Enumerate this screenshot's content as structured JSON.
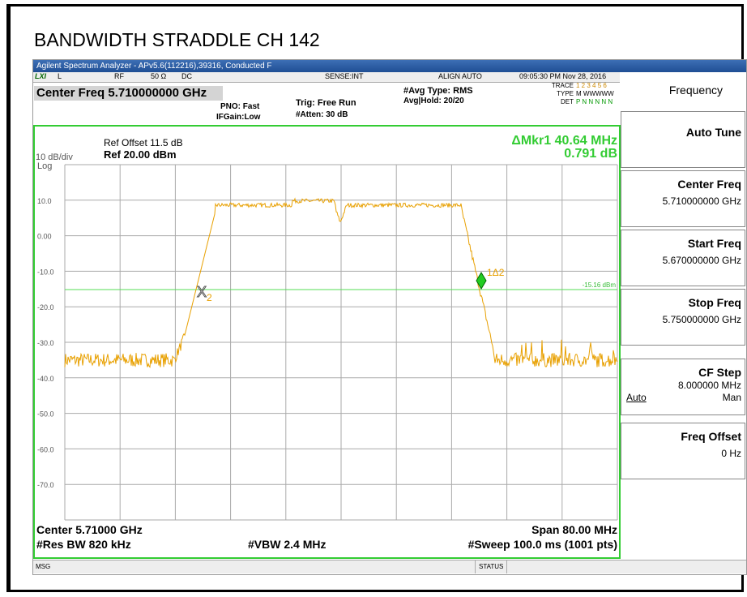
{
  "title": "BANDWIDTH STRADDLE CH 142",
  "window_title": "Agilent Spectrum Analyzer - APv5.6(112216),39316, Conducted F",
  "status_row": {
    "lxi": "LXI",
    "l": "L",
    "rf": "RF",
    "impedance": "50 Ω",
    "coupling": "DC",
    "sense": "SENSE:INT",
    "align": "ALIGN AUTO",
    "datetime": "09:05:30 PM Nov 28, 2016"
  },
  "header": {
    "center_freq": "Center Freq 5.710000000 GHz",
    "pno": "PNO: Fast",
    "ifgain": "IFGain:Low",
    "trig": "Trig: Free Run",
    "atten": "#Atten: 30 dB",
    "avg_type": "#Avg Type: RMS",
    "avg_hold": "Avg|Hold: 20/20",
    "trace_label": "TRACE",
    "trace_nums": "1 2 3 4 5 6",
    "type_label": "TYPE",
    "type_vals": "M WWWWW",
    "det_label": "DET",
    "det_vals": "P N N N N N"
  },
  "graph": {
    "ref_offset": "Ref Offset 11.5 dB",
    "scale": "10 dB/div",
    "ref": "Ref 20.00 dBm",
    "log": "Log",
    "marker_delta": "ΔMkr1 40.64 MHz",
    "marker_value": "0.791 dB",
    "line_label": "-15.16 dBm",
    "marker1_label": "1Δ2",
    "marker2_label": "2",
    "y_labels": [
      "10.0",
      "0.00",
      "-10.0",
      "-20.0",
      "-30.0",
      "-40.0",
      "-50.0",
      "-60.0",
      "-70.0"
    ]
  },
  "footer": {
    "center": "Center 5.71000 GHz",
    "span": "Span 80.00 MHz",
    "rbw": "#Res BW 820 kHz",
    "vbw": "#VBW 2.4 MHz",
    "sweep": "#Sweep  100.0 ms (1001 pts)"
  },
  "status_bar": {
    "msg": "MSG",
    "status": "STATUS"
  },
  "softkeys": {
    "menu": "Frequency",
    "keys": [
      {
        "label": "Auto Tune"
      },
      {
        "label": "Center Freq",
        "value": "5.710000000 GHz"
      },
      {
        "label": "Start Freq",
        "value": "5.670000000 GHz"
      },
      {
        "label": "Stop Freq",
        "value": "5.750000000 GHz"
      },
      {
        "label": "CF Step",
        "value": "8.000000 MHz",
        "left": "Auto",
        "right": "Man"
      },
      {
        "label": "Freq Offset",
        "value": "0 Hz"
      }
    ]
  }
}
